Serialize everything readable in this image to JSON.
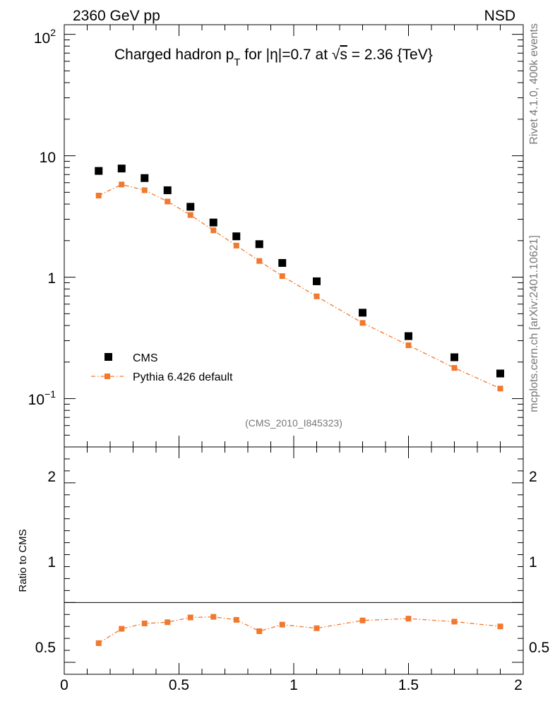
{
  "header": {
    "left_label": "2360 GeV pp",
    "right_label": "NSD"
  },
  "side_labels": {
    "rivet": "Rivet 4.1.0,  400k events",
    "mcplots": "mcplots.cern.ch [arXiv:2401.10621]"
  },
  "watermark": "(CMS_2010_I845323)",
  "colors": {
    "data": "#000000",
    "mc": "#f0792d",
    "secondary_text": "#777777"
  },
  "chart_data": [
    {
      "type": "scatter",
      "title": {
        "prefix": "Charged hadron p",
        "sub": "T",
        "middle": " for |η|=0.7 at √",
        "sqrt_arg": "s",
        "suffix": " = 2.36 {TeV}"
      },
      "yscale": "log",
      "ylim": [
        0.04,
        120
      ],
      "xlim": [
        0,
        2
      ],
      "y_ticks": [
        {
          "value": 100,
          "base": "10",
          "exp": "2"
        },
        {
          "value": 10,
          "base": "10",
          "exp": ""
        },
        {
          "value": 1,
          "base": "1",
          "exp": ""
        },
        {
          "value": 0.1,
          "base": "10",
          "exp": "−1"
        }
      ],
      "legend_position": "bottom-left",
      "series": [
        {
          "name": "CMS",
          "style": "markers",
          "x": [
            0.15,
            0.25,
            0.35,
            0.45,
            0.55,
            0.65,
            0.75,
            0.85,
            0.95,
            1.1,
            1.3,
            1.5,
            1.7,
            1.9
          ],
          "y": [
            7.5,
            7.85,
            6.55,
            5.2,
            3.8,
            2.82,
            2.17,
            1.87,
            1.31,
            0.925,
            0.51,
            0.327,
            0.219,
            0.161
          ]
        },
        {
          "name": "Pythia 6.426 default",
          "style": "line+markers",
          "x": [
            0.15,
            0.25,
            0.35,
            0.45,
            0.55,
            0.65,
            0.75,
            0.85,
            0.95,
            1.1,
            1.3,
            1.5,
            1.7,
            1.9
          ],
          "y": [
            4.7,
            5.8,
            5.2,
            4.2,
            3.25,
            2.43,
            1.82,
            1.36,
            1.02,
            0.695,
            0.42,
            0.275,
            0.179,
            0.121
          ]
        }
      ]
    },
    {
      "type": "line",
      "ylabel": "Ratio to CMS",
      "ylim": [
        0.4,
        2.3
      ],
      "xlim": [
        0,
        2
      ],
      "y_ticks": [
        {
          "value": 2,
          "label": "2"
        },
        {
          "value": 1,
          "label": "1"
        },
        {
          "value": 0.5,
          "label": "0.5"
        }
      ],
      "x_ticks": [
        {
          "value": 0,
          "label": "0"
        },
        {
          "value": 0.5,
          "label": "0.5"
        },
        {
          "value": 1,
          "label": "1"
        },
        {
          "value": 1.5,
          "label": "1.5"
        },
        {
          "value": 2,
          "label": "2"
        }
      ],
      "reference": 1,
      "series": [
        {
          "name": "Pythia 6.426 default / CMS",
          "x": [
            0.15,
            0.25,
            0.35,
            0.45,
            0.55,
            0.65,
            0.75,
            0.85,
            0.95,
            1.1,
            1.3,
            1.5,
            1.7,
            1.9
          ],
          "values": [
            0.66,
            0.78,
            0.825,
            0.835,
            0.875,
            0.88,
            0.855,
            0.76,
            0.815,
            0.785,
            0.85,
            0.865,
            0.84,
            0.8
          ]
        }
      ]
    }
  ]
}
